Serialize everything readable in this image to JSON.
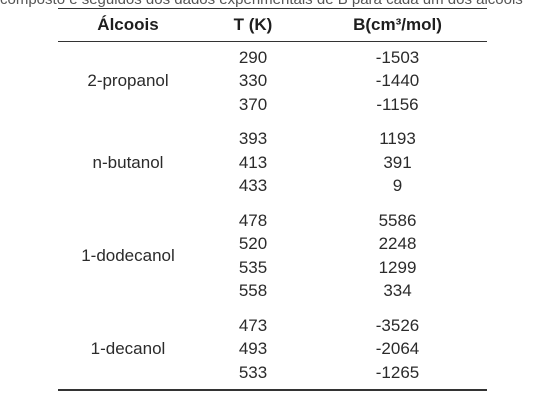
{
  "caption": "composto e seguidos dos dados experimentais de B para cada um dos álcoois",
  "table": {
    "headers": [
      "Álcoois",
      "T (K)",
      "B(cm³/mol)"
    ],
    "groups": [
      {
        "name": "2-propanol",
        "rows": [
          {
            "t": "290",
            "b": "-1503"
          },
          {
            "t": "330",
            "b": "-1440"
          },
          {
            "t": "370",
            "b": "-1156"
          }
        ]
      },
      {
        "name": "n-butanol",
        "rows": [
          {
            "t": "393",
            "b": "1193"
          },
          {
            "t": "413",
            "b": "391"
          },
          {
            "t": "433",
            "b": "9"
          }
        ]
      },
      {
        "name": "1-dodecanol",
        "rows": [
          {
            "t": "478",
            "b": "5586"
          },
          {
            "t": "520",
            "b": "2248"
          },
          {
            "t": "535",
            "b": "1299"
          },
          {
            "t": "558",
            "b": "334"
          }
        ]
      },
      {
        "name": "1-decanol",
        "rows": [
          {
            "t": "473",
            "b": "-3526"
          },
          {
            "t": "493",
            "b": "-2064"
          },
          {
            "t": "533",
            "b": "-1265"
          }
        ]
      }
    ]
  }
}
